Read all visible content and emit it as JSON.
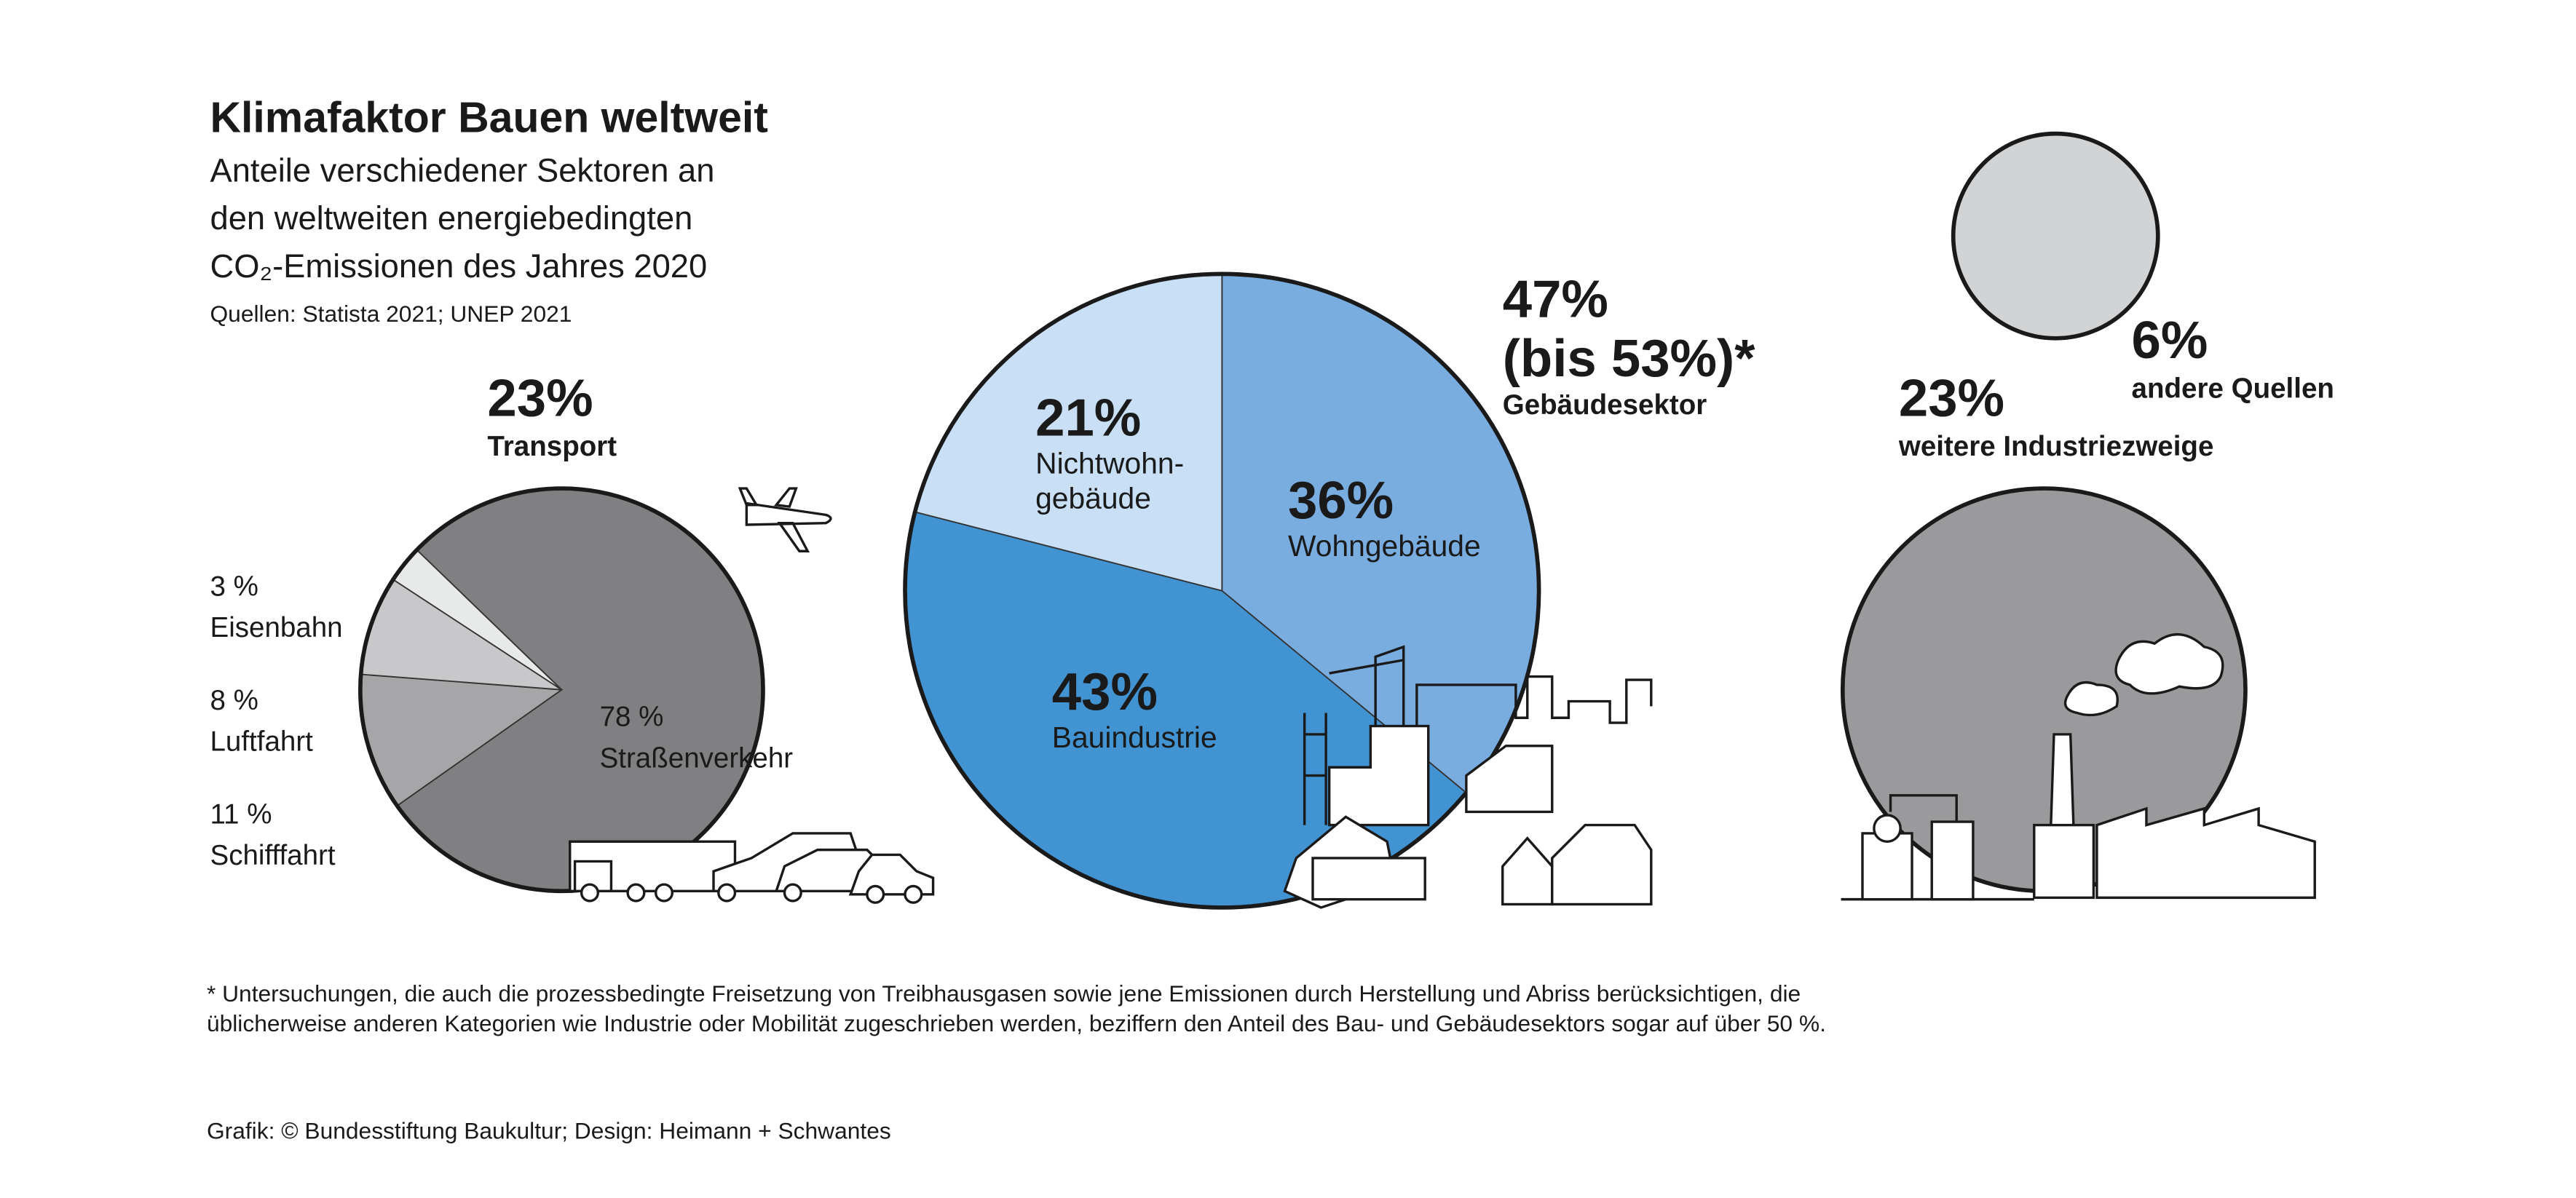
{
  "title": "Klimafaktor Bauen weltweit",
  "subtitle": [
    "Anteile verschiedener Sektoren an",
    "den weltweiten energiebedingten",
    "CO₂-Emissionen des Jahres 2020"
  ],
  "source": "Quellen: Statista 2021; UNEP 2021",
  "chart_data": [
    {
      "type": "pie",
      "total": {
        "value": 23,
        "label": "23%"
      },
      "label": "Transport",
      "categories": [
        "Straßenverkehr",
        "Schifffahrt",
        "Luftfahrt",
        "Eisenbahn"
      ],
      "values": [
        78,
        11,
        8,
        3
      ],
      "value_labels": [
        "78 %",
        "11 %",
        "8 %",
        "3 %"
      ],
      "colors": [
        "#808083",
        "#a6a6a8",
        "#c8c8ca",
        "#e8e9e9"
      ]
    },
    {
      "type": "pie",
      "total": {
        "value": 47,
        "label": "47%"
      },
      "note": "(bis 53%)*",
      "label": "Gebäudesektor",
      "categories": [
        "Wohngebäude",
        "Bauindustrie",
        [
          "Nichtwohn-",
          "gebäude"
        ]
      ],
      "values": [
        36,
        43,
        21
      ],
      "value_labels": [
        "36%",
        "43%",
        "21%"
      ],
      "colors": [
        "#79acdf",
        "#4293d1",
        "#c8dff5"
      ]
    },
    {
      "type": "pie",
      "categories": [
        "weitere Industriezweige"
      ],
      "values": [
        23
      ],
      "value_labels": [
        "23%"
      ],
      "colors": [
        "#9a9a9c"
      ]
    },
    {
      "type": "pie",
      "categories": [
        "andere Quellen"
      ],
      "values": [
        6
      ],
      "value_labels": [
        "6%"
      ],
      "colors": [
        "#d2d3d5"
      ]
    }
  ],
  "footnote": [
    "* Untersuchungen, die auch die prozessbedingte Freisetzung von Treibhausgasen sowie jene Emissionen durch Herstellung und Abriss berücksichtigen, die",
    "üblicherweise anderen Kategorien wie Industrie oder Mobilität zugeschrieben werden, beziffern den Anteil des Bau- und Gebäudesektors sogar auf über 50 %."
  ],
  "credit": "Grafik: © Bundesstiftung Baukultur; Design: Heimann + Schwantes"
}
